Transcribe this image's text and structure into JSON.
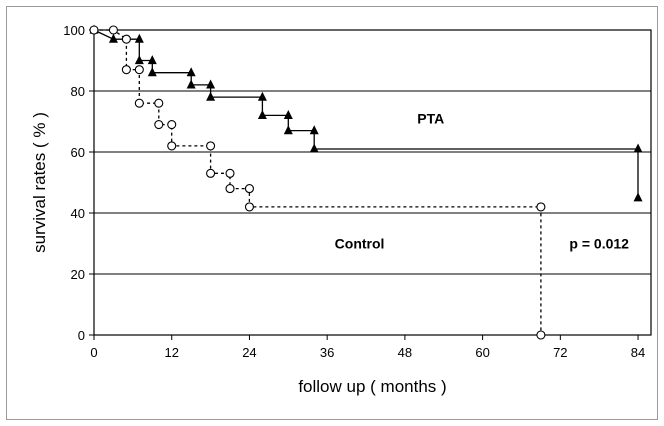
{
  "chart_data": {
    "type": "line",
    "step": true,
    "xlabel": "follow up  ( months )",
    "ylabel": "survival rates  ( % )",
    "xlim": [
      0,
      86
    ],
    "ylim": [
      0,
      100
    ],
    "xticks": [
      0,
      12,
      24,
      36,
      48,
      60,
      72,
      84
    ],
    "yticks": [
      0,
      20,
      40,
      60,
      80,
      100
    ],
    "grid": "horizontal",
    "series": [
      {
        "name": "PTA",
        "marker": "filled-triangle",
        "line": "solid",
        "color": "#000000",
        "points": [
          [
            0,
            100
          ],
          [
            3,
            97
          ],
          [
            7,
            97
          ],
          [
            7,
            90
          ],
          [
            9,
            90
          ],
          [
            9,
            86
          ],
          [
            15,
            86
          ],
          [
            15,
            82
          ],
          [
            18,
            82
          ],
          [
            18,
            78
          ],
          [
            26,
            78
          ],
          [
            26,
            72
          ],
          [
            30,
            72
          ],
          [
            30,
            67
          ],
          [
            34,
            67
          ],
          [
            34,
            61
          ],
          [
            84,
            61
          ],
          [
            84,
            45
          ]
        ]
      },
      {
        "name": "Control",
        "marker": "open-circle",
        "line": "dashed",
        "color": "#000000",
        "points": [
          [
            0,
            100
          ],
          [
            3,
            100
          ],
          [
            5,
            97
          ],
          [
            5,
            87
          ],
          [
            7,
            87
          ],
          [
            7,
            76
          ],
          [
            10,
            76
          ],
          [
            10,
            69
          ],
          [
            12,
            69
          ],
          [
            12,
            62
          ],
          [
            18,
            62
          ],
          [
            18,
            53
          ],
          [
            21,
            53
          ],
          [
            21,
            48
          ],
          [
            24,
            48
          ],
          [
            24,
            42
          ],
          [
            69,
            42
          ],
          [
            69,
            0
          ]
        ]
      }
    ],
    "annotations": [
      {
        "text": "PTA",
        "x": 52,
        "y": 71
      },
      {
        "text": "Control",
        "x": 41,
        "y": 30
      },
      {
        "text": "p = 0.012",
        "x": 78,
        "y": 30
      }
    ]
  }
}
